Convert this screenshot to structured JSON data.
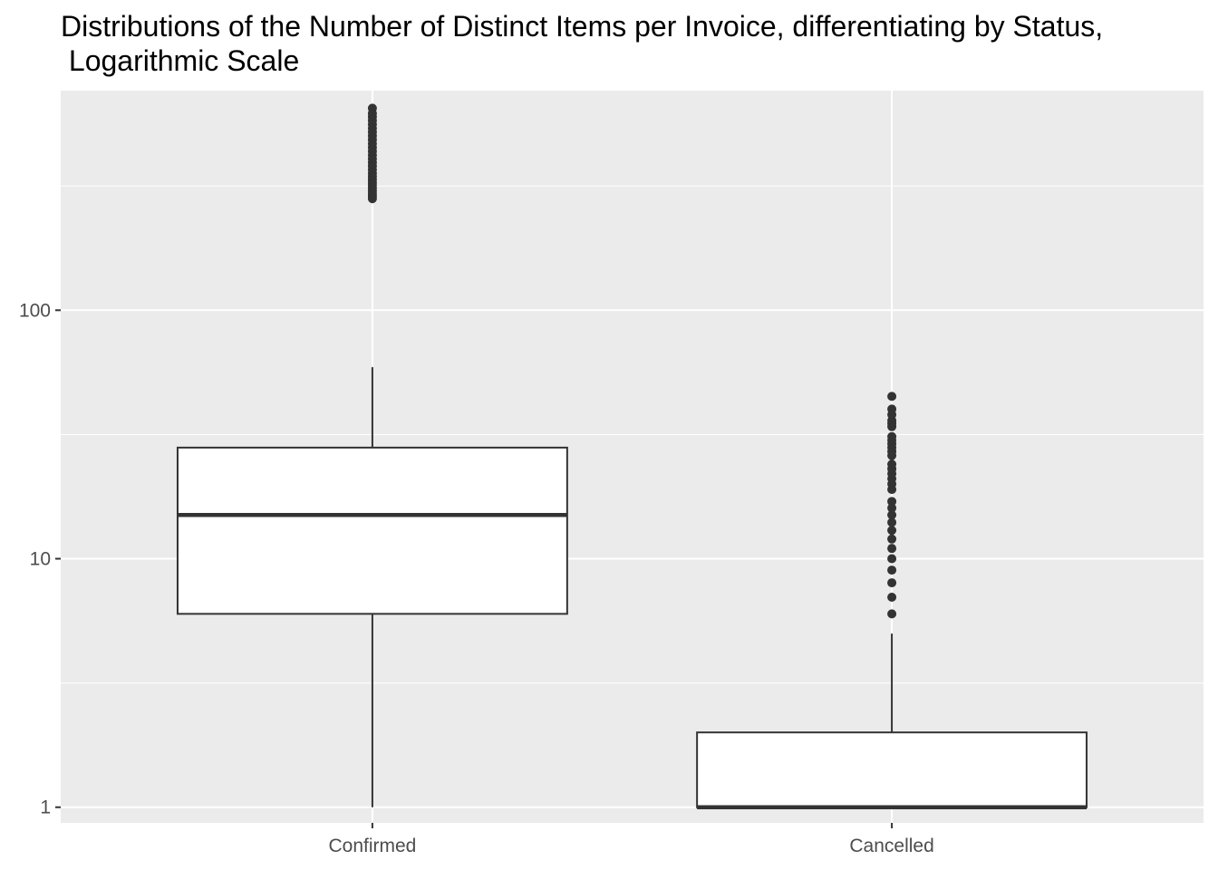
{
  "chart_data": {
    "type": "boxplot",
    "title": "Distributions of the Number of Distinct Items per Invoice, differentiating by Status,\n Logarithmic Scale",
    "xlabel": "",
    "ylabel": "",
    "y_scale": "log10",
    "ylim": [
      0.865,
      765
    ],
    "y_ticks": [
      1,
      10,
      100
    ],
    "y_tick_labels": [
      "1",
      "10",
      "100"
    ],
    "y_minor_ticks": [
      3.16,
      31.6,
      316
    ],
    "categories": [
      "Confirmed",
      "Cancelled"
    ],
    "grid": true,
    "legend": "none",
    "colors": {
      "panel_bg": "#ebebeb",
      "grid": "#ffffff",
      "box_fill": "#ffffff",
      "box_stroke": "#333333",
      "outlier": "#333333",
      "tick_text": "#4d4d4d",
      "tick_mark": "#333333"
    },
    "boxes": [
      {
        "category": "Confirmed",
        "whisker_low": 1,
        "q1": 6,
        "median": 15,
        "q3": 28,
        "whisker_high": 59,
        "outliers": [
          281,
          288,
          295,
          302,
          310,
          318,
          326,
          335,
          345,
          356,
          368,
          380,
          393,
          407,
          421,
          436,
          452,
          468,
          485,
          503,
          521,
          540,
          560,
          580,
          600,
          620,
          650
        ]
      },
      {
        "category": "Cancelled",
        "whisker_low": 1,
        "q1": 1,
        "median": 1,
        "q3": 2,
        "whisker_high": 5,
        "outliers": [
          6,
          7,
          8,
          9,
          10,
          11,
          12,
          13,
          14,
          15,
          16,
          17,
          19,
          20,
          21,
          22,
          23,
          24,
          26,
          27,
          28,
          29,
          30,
          31,
          34,
          35,
          36,
          38,
          40,
          45
        ]
      }
    ]
  }
}
